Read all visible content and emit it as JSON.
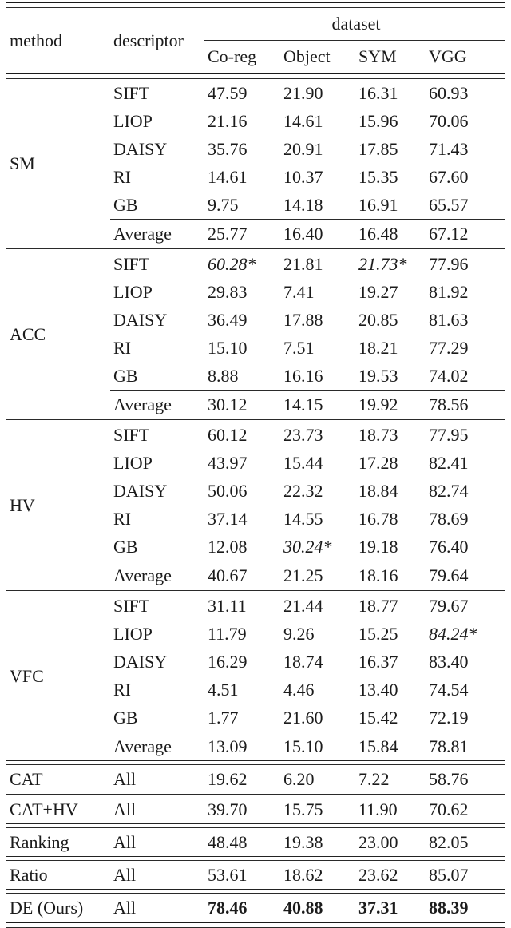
{
  "table": {
    "header": {
      "method": "method",
      "descriptor": "descriptor",
      "dataset": "dataset",
      "datasets": [
        "Co-reg",
        "Object",
        "SYM",
        "VGG"
      ]
    },
    "rules": {
      "top": "double-heavy",
      "after_header": "double-heavy",
      "bottom": "double-heavy"
    },
    "groups": [
      {
        "method": "SM",
        "rule_after": "single",
        "rows": [
          {
            "descriptor": "SIFT",
            "average": false,
            "values": [
              {
                "text": "47.59"
              },
              {
                "text": "21.90"
              },
              {
                "text": "16.31"
              },
              {
                "text": "60.93"
              }
            ]
          },
          {
            "descriptor": "LIOP",
            "average": false,
            "values": [
              {
                "text": "21.16"
              },
              {
                "text": "14.61"
              },
              {
                "text": "15.96"
              },
              {
                "text": "70.06"
              }
            ]
          },
          {
            "descriptor": "DAISY",
            "average": false,
            "values": [
              {
                "text": "35.76"
              },
              {
                "text": "20.91"
              },
              {
                "text": "17.85"
              },
              {
                "text": "71.43"
              }
            ]
          },
          {
            "descriptor": "RI",
            "average": false,
            "values": [
              {
                "text": "14.61"
              },
              {
                "text": "10.37"
              },
              {
                "text": "15.35"
              },
              {
                "text": "67.60"
              }
            ]
          },
          {
            "descriptor": "GB",
            "average": false,
            "values": [
              {
                "text": "9.75"
              },
              {
                "text": "14.18"
              },
              {
                "text": "16.91"
              },
              {
                "text": "65.57"
              }
            ]
          },
          {
            "descriptor": "Average",
            "average": true,
            "values": [
              {
                "text": "25.77"
              },
              {
                "text": "16.40"
              },
              {
                "text": "16.48"
              },
              {
                "text": "67.12"
              }
            ]
          }
        ]
      },
      {
        "method": "ACC",
        "rule_after": "single",
        "rows": [
          {
            "descriptor": "SIFT",
            "average": false,
            "values": [
              {
                "text": "60.28*",
                "style": "italic"
              },
              {
                "text": "21.81"
              },
              {
                "text": "21.73*",
                "style": "italic"
              },
              {
                "text": "77.96"
              }
            ]
          },
          {
            "descriptor": "LIOP",
            "average": false,
            "values": [
              {
                "text": "29.83"
              },
              {
                "text": "7.41"
              },
              {
                "text": "19.27"
              },
              {
                "text": "81.92"
              }
            ]
          },
          {
            "descriptor": "DAISY",
            "average": false,
            "values": [
              {
                "text": "36.49"
              },
              {
                "text": "17.88"
              },
              {
                "text": "20.85"
              },
              {
                "text": "81.63"
              }
            ]
          },
          {
            "descriptor": "RI",
            "average": false,
            "values": [
              {
                "text": "15.10"
              },
              {
                "text": "7.51"
              },
              {
                "text": "18.21"
              },
              {
                "text": "77.29"
              }
            ]
          },
          {
            "descriptor": "GB",
            "average": false,
            "values": [
              {
                "text": "8.88"
              },
              {
                "text": "16.16"
              },
              {
                "text": "19.53"
              },
              {
                "text": "74.02"
              }
            ]
          },
          {
            "descriptor": "Average",
            "average": true,
            "values": [
              {
                "text": "30.12"
              },
              {
                "text": "14.15"
              },
              {
                "text": "19.92"
              },
              {
                "text": "78.56"
              }
            ]
          }
        ]
      },
      {
        "method": "HV",
        "rule_after": "single",
        "rows": [
          {
            "descriptor": "SIFT",
            "average": false,
            "values": [
              {
                "text": "60.12"
              },
              {
                "text": "23.73"
              },
              {
                "text": "18.73"
              },
              {
                "text": "77.95"
              }
            ]
          },
          {
            "descriptor": "LIOP",
            "average": false,
            "values": [
              {
                "text": "43.97"
              },
              {
                "text": "15.44"
              },
              {
                "text": "17.28"
              },
              {
                "text": "82.41"
              }
            ]
          },
          {
            "descriptor": "DAISY",
            "average": false,
            "values": [
              {
                "text": "50.06"
              },
              {
                "text": "22.32"
              },
              {
                "text": "18.84"
              },
              {
                "text": "82.74"
              }
            ]
          },
          {
            "descriptor": "RI",
            "average": false,
            "values": [
              {
                "text": "37.14"
              },
              {
                "text": "14.55"
              },
              {
                "text": "16.78"
              },
              {
                "text": "78.69"
              }
            ]
          },
          {
            "descriptor": "GB",
            "average": false,
            "values": [
              {
                "text": "12.08"
              },
              {
                "text": "30.24*",
                "style": "italic"
              },
              {
                "text": "19.18"
              },
              {
                "text": "76.40"
              }
            ]
          },
          {
            "descriptor": "Average",
            "average": true,
            "values": [
              {
                "text": "40.67"
              },
              {
                "text": "21.25"
              },
              {
                "text": "18.16"
              },
              {
                "text": "79.64"
              }
            ]
          }
        ]
      },
      {
        "method": "VFC",
        "rule_after": "double",
        "rows": [
          {
            "descriptor": "SIFT",
            "average": false,
            "values": [
              {
                "text": "31.11"
              },
              {
                "text": "21.44"
              },
              {
                "text": "18.77"
              },
              {
                "text": "79.67"
              }
            ]
          },
          {
            "descriptor": "LIOP",
            "average": false,
            "values": [
              {
                "text": "11.79"
              },
              {
                "text": "9.26"
              },
              {
                "text": "15.25"
              },
              {
                "text": "84.24*",
                "style": "italic"
              }
            ]
          },
          {
            "descriptor": "DAISY",
            "average": false,
            "values": [
              {
                "text": "16.29"
              },
              {
                "text": "18.74"
              },
              {
                "text": "16.37"
              },
              {
                "text": "83.40"
              }
            ]
          },
          {
            "descriptor": "RI",
            "average": false,
            "values": [
              {
                "text": "4.51"
              },
              {
                "text": "4.46"
              },
              {
                "text": "13.40"
              },
              {
                "text": "74.54"
              }
            ]
          },
          {
            "descriptor": "GB",
            "average": false,
            "values": [
              {
                "text": "1.77"
              },
              {
                "text": "21.60"
              },
              {
                "text": "15.42"
              },
              {
                "text": "72.19"
              }
            ]
          },
          {
            "descriptor": "Average",
            "average": true,
            "values": [
              {
                "text": "13.09"
              },
              {
                "text": "15.10"
              },
              {
                "text": "15.84"
              },
              {
                "text": "78.81"
              }
            ]
          }
        ]
      }
    ],
    "footer_rows": [
      {
        "method": "CAT",
        "descriptor": "All",
        "rule_after": "single",
        "values": [
          {
            "text": "19.62"
          },
          {
            "text": "6.20"
          },
          {
            "text": "7.22"
          },
          {
            "text": "58.76"
          }
        ]
      },
      {
        "method": "CAT+HV",
        "descriptor": "All",
        "rule_after": "double",
        "values": [
          {
            "text": "39.70"
          },
          {
            "text": "15.75"
          },
          {
            "text": "11.90"
          },
          {
            "text": "70.62"
          }
        ]
      },
      {
        "method": "Ranking",
        "descriptor": "All",
        "rule_after": "double",
        "values": [
          {
            "text": "48.48"
          },
          {
            "text": "19.38"
          },
          {
            "text": "23.00"
          },
          {
            "text": "82.05"
          }
        ]
      },
      {
        "method": "Ratio",
        "descriptor": "All",
        "rule_after": "double",
        "values": [
          {
            "text": "53.61"
          },
          {
            "text": "18.62"
          },
          {
            "text": "23.62"
          },
          {
            "text": "85.07"
          }
        ]
      },
      {
        "method": "DE (Ours)",
        "descriptor": "All",
        "rule_after": "double-heavy",
        "values": [
          {
            "text": "78.46",
            "style": "bold"
          },
          {
            "text": "40.88",
            "style": "bold"
          },
          {
            "text": "37.31",
            "style": "bold"
          },
          {
            "text": "88.39",
            "style": "bold"
          }
        ]
      }
    ]
  }
}
